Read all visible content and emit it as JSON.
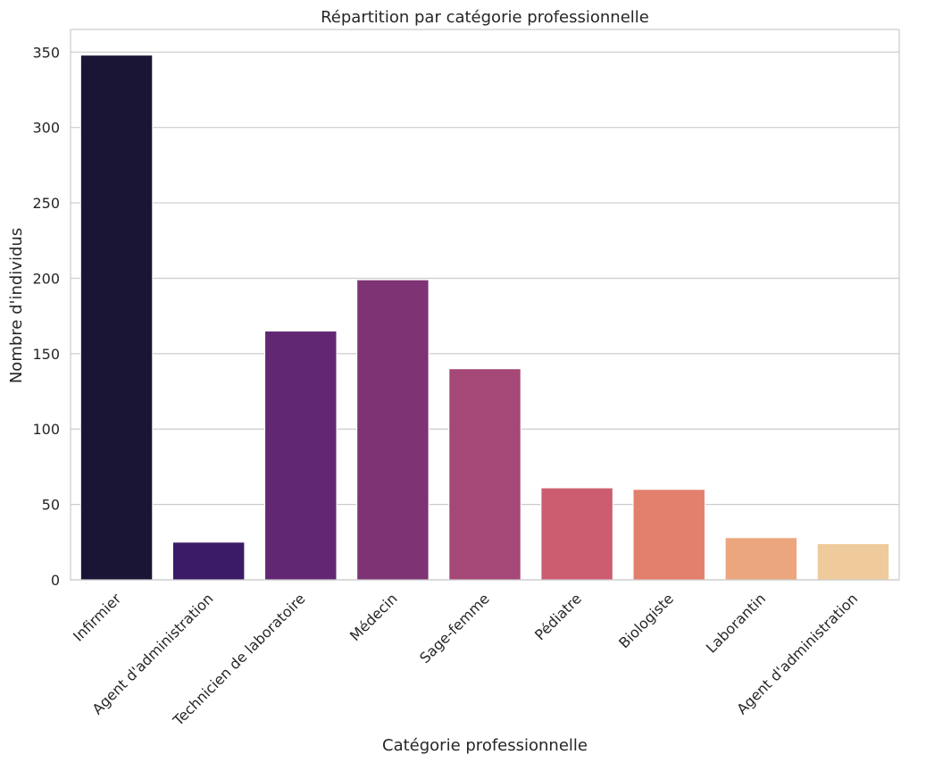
{
  "chart_data": {
    "type": "bar",
    "title": "Répartition par catégorie professionnelle",
    "xlabel": "Catégorie professionnelle",
    "ylabel": "Nombre d'individus",
    "categories": [
      "Infirmier",
      "Agent d'administration",
      "Technicien de laboratoire",
      "Médecin",
      "Sage-femme",
      "Pédiatre",
      "Biologiste",
      "Laborantin",
      "Agent d'administration"
    ],
    "values": [
      348,
      25,
      165,
      199,
      140,
      61,
      60,
      28,
      24
    ],
    "colors": [
      "#1b1535",
      "#3b1a68",
      "#622773",
      "#7e3374",
      "#a54877",
      "#cc5d70",
      "#e37f6d",
      "#eca67e",
      "#efcb9b"
    ],
    "ylim": [
      0,
      365
    ],
    "yticks": [
      0,
      50,
      100,
      150,
      200,
      250,
      300,
      350
    ],
    "grid": "horizontal",
    "tick_label_rotation": 45
  }
}
